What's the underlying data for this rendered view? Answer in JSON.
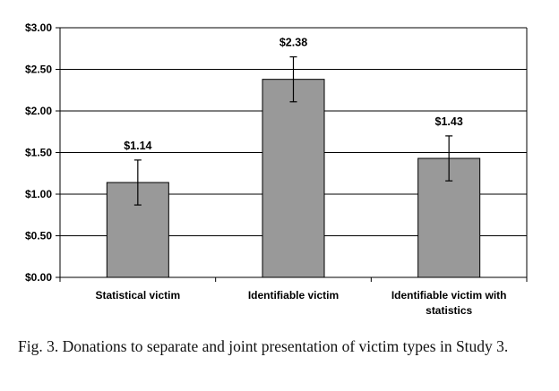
{
  "chart_data": {
    "type": "bar",
    "categories": [
      [
        "Statistical victim"
      ],
      [
        "Identifiable victim"
      ],
      [
        "Identifiable victim with",
        "statistics"
      ]
    ],
    "values": [
      1.14,
      2.38,
      1.43
    ],
    "value_labels": [
      "$1.14",
      "$2.38",
      "$1.43"
    ],
    "error_low": [
      0.87,
      2.11,
      1.16
    ],
    "error_high": [
      1.41,
      2.65,
      1.7
    ],
    "ylim": [
      0,
      3
    ],
    "yticks": [
      0,
      0.5,
      1,
      1.5,
      2,
      2.5,
      3
    ],
    "ytick_labels": [
      "$0.00",
      "$0.50",
      "$1.00",
      "$1.50",
      "$2.00",
      "$2.50",
      "$3.00"
    ],
    "bar_color": "#999999",
    "grid": true
  },
  "caption": "Fig. 3.  Donations to separate and joint presentation of victim types in Study 3."
}
